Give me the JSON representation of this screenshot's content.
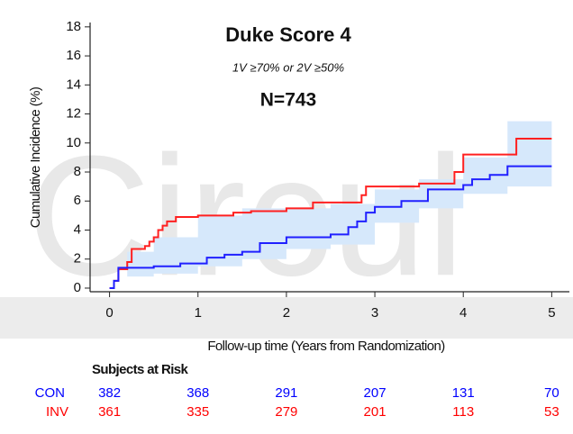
{
  "chart_data": {
    "type": "line",
    "step": true,
    "title": "Duke Score 4",
    "subtitle": "1V ≥70% or 2V ≥50%",
    "annotation": "N=743",
    "watermark": "Circul",
    "y_label": "Cumulative Incidence (%)",
    "x_label": "Follow-up time (Years from Randomization)",
    "xlim": [
      -0.22,
      5.2
    ],
    "ylim": [
      -0.25,
      18.3
    ],
    "xticks": [
      0,
      1,
      2,
      3,
      4,
      5
    ],
    "yticks": [
      0,
      2,
      4,
      6,
      8,
      10,
      12,
      14,
      16,
      18
    ],
    "band": {
      "color": "#d6e8fb",
      "x": [
        0,
        0.2,
        0.5,
        1.0,
        1.5,
        2.0,
        2.5,
        3.0,
        3.5,
        4.0,
        4.5,
        5.0
      ],
      "lower": [
        0,
        0.8,
        1.0,
        1.5,
        2.0,
        2.7,
        3.0,
        4.5,
        5.5,
        6.5,
        7.0,
        7.0
      ],
      "upper": [
        0,
        2.5,
        3.5,
        5.0,
        5.5,
        5.5,
        5.8,
        6.8,
        7.5,
        9.0,
        11.5,
        12.2
      ]
    },
    "series": [
      {
        "name": "INV",
        "color": "#ff2020",
        "x": [
          0,
          0.05,
          0.1,
          0.2,
          0.25,
          0.4,
          0.45,
          0.5,
          0.55,
          0.6,
          0.65,
          0.75,
          1.0,
          1.4,
          1.6,
          2.0,
          2.3,
          2.85,
          2.9,
          3.5,
          3.9,
          4.0,
          4.6,
          5.0
        ],
        "values": [
          0,
          0.5,
          1.3,
          1.8,
          2.7,
          2.9,
          3.2,
          3.5,
          4.0,
          4.3,
          4.6,
          4.9,
          5.0,
          5.2,
          5.3,
          5.5,
          5.9,
          6.4,
          7.0,
          7.2,
          8.0,
          9.2,
          10.3,
          10.3
        ]
      },
      {
        "name": "CON",
        "color": "#2020ff",
        "x": [
          0,
          0.05,
          0.1,
          0.5,
          0.8,
          1.1,
          1.3,
          1.5,
          1.7,
          2.0,
          2.5,
          2.7,
          2.8,
          2.9,
          3.0,
          3.3,
          3.6,
          4.0,
          4.1,
          4.3,
          4.5,
          5.0
        ],
        "values": [
          0,
          0.5,
          1.4,
          1.5,
          1.7,
          2.1,
          2.3,
          2.5,
          3.1,
          3.5,
          3.7,
          4.2,
          4.6,
          5.2,
          5.6,
          6.0,
          6.8,
          7.1,
          7.5,
          7.8,
          8.4,
          8.4
        ]
      }
    ],
    "risk_table": {
      "title": "Subjects at Risk",
      "rows": [
        {
          "name": "CON",
          "color": "#0000ff",
          "values": [
            382,
            368,
            291,
            207,
            131,
            70
          ]
        },
        {
          "name": "INV",
          "color": "#ff0000",
          "values": [
            361,
            335,
            279,
            201,
            113,
            53
          ]
        }
      ]
    }
  }
}
